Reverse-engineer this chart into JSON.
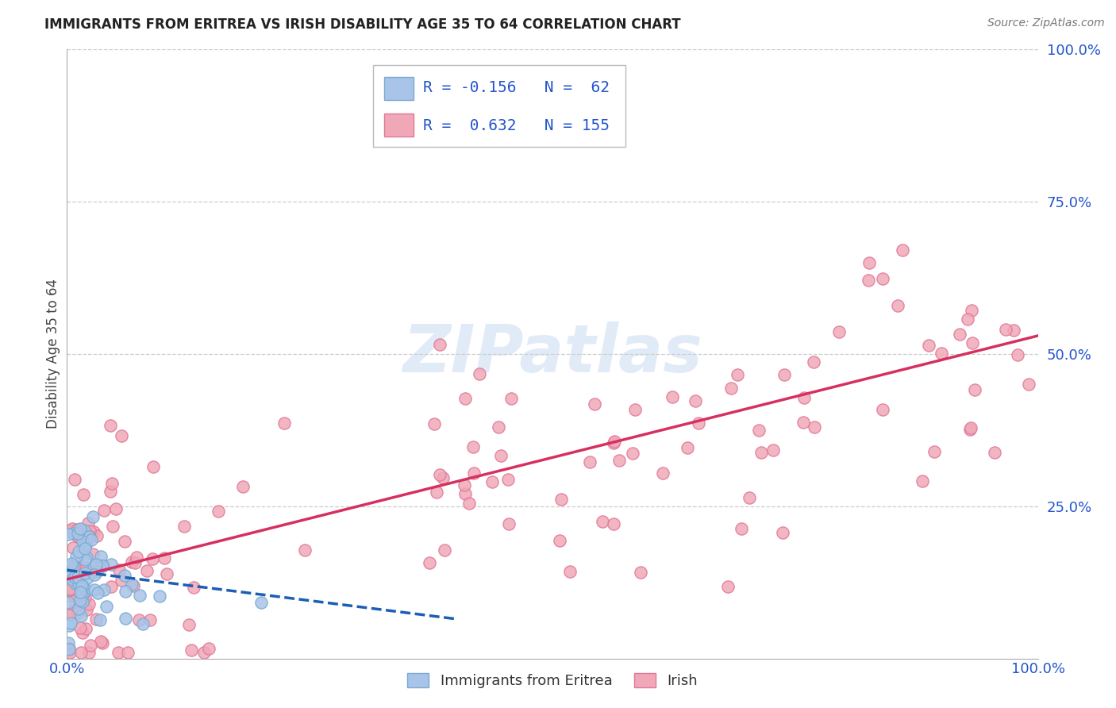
{
  "title": "IMMIGRANTS FROM ERITREA VS IRISH DISABILITY AGE 35 TO 64 CORRELATION CHART",
  "source": "Source: ZipAtlas.com",
  "ylabel": "Disability Age 35 to 64",
  "blue_color": "#a8c4e8",
  "blue_edge_color": "#7aaad0",
  "pink_color": "#f0a8b8",
  "pink_edge_color": "#e07898",
  "blue_line_color": "#1a5fb4",
  "pink_line_color": "#d63060",
  "title_color": "#222222",
  "source_color": "#777777",
  "axis_label_color": "#2255cc",
  "ylabel_color": "#444444",
  "legend_text_color": "#2255cc",
  "grid_color": "#cccccc",
  "watermark_color": "#c5d8f0",
  "watermark_alpha": 0.5,
  "R_blue": -0.156,
  "N_blue": 62,
  "R_pink": 0.632,
  "N_pink": 155,
  "xlim": [
    0,
    100
  ],
  "ylim": [
    0,
    100
  ],
  "blue_line_x0": 0,
  "blue_line_x1": 40,
  "blue_line_y0": 14.5,
  "blue_line_y1": 6.5,
  "pink_line_x0": 0,
  "pink_line_x1": 100,
  "pink_line_y0": 13.0,
  "pink_line_y1": 53.0
}
